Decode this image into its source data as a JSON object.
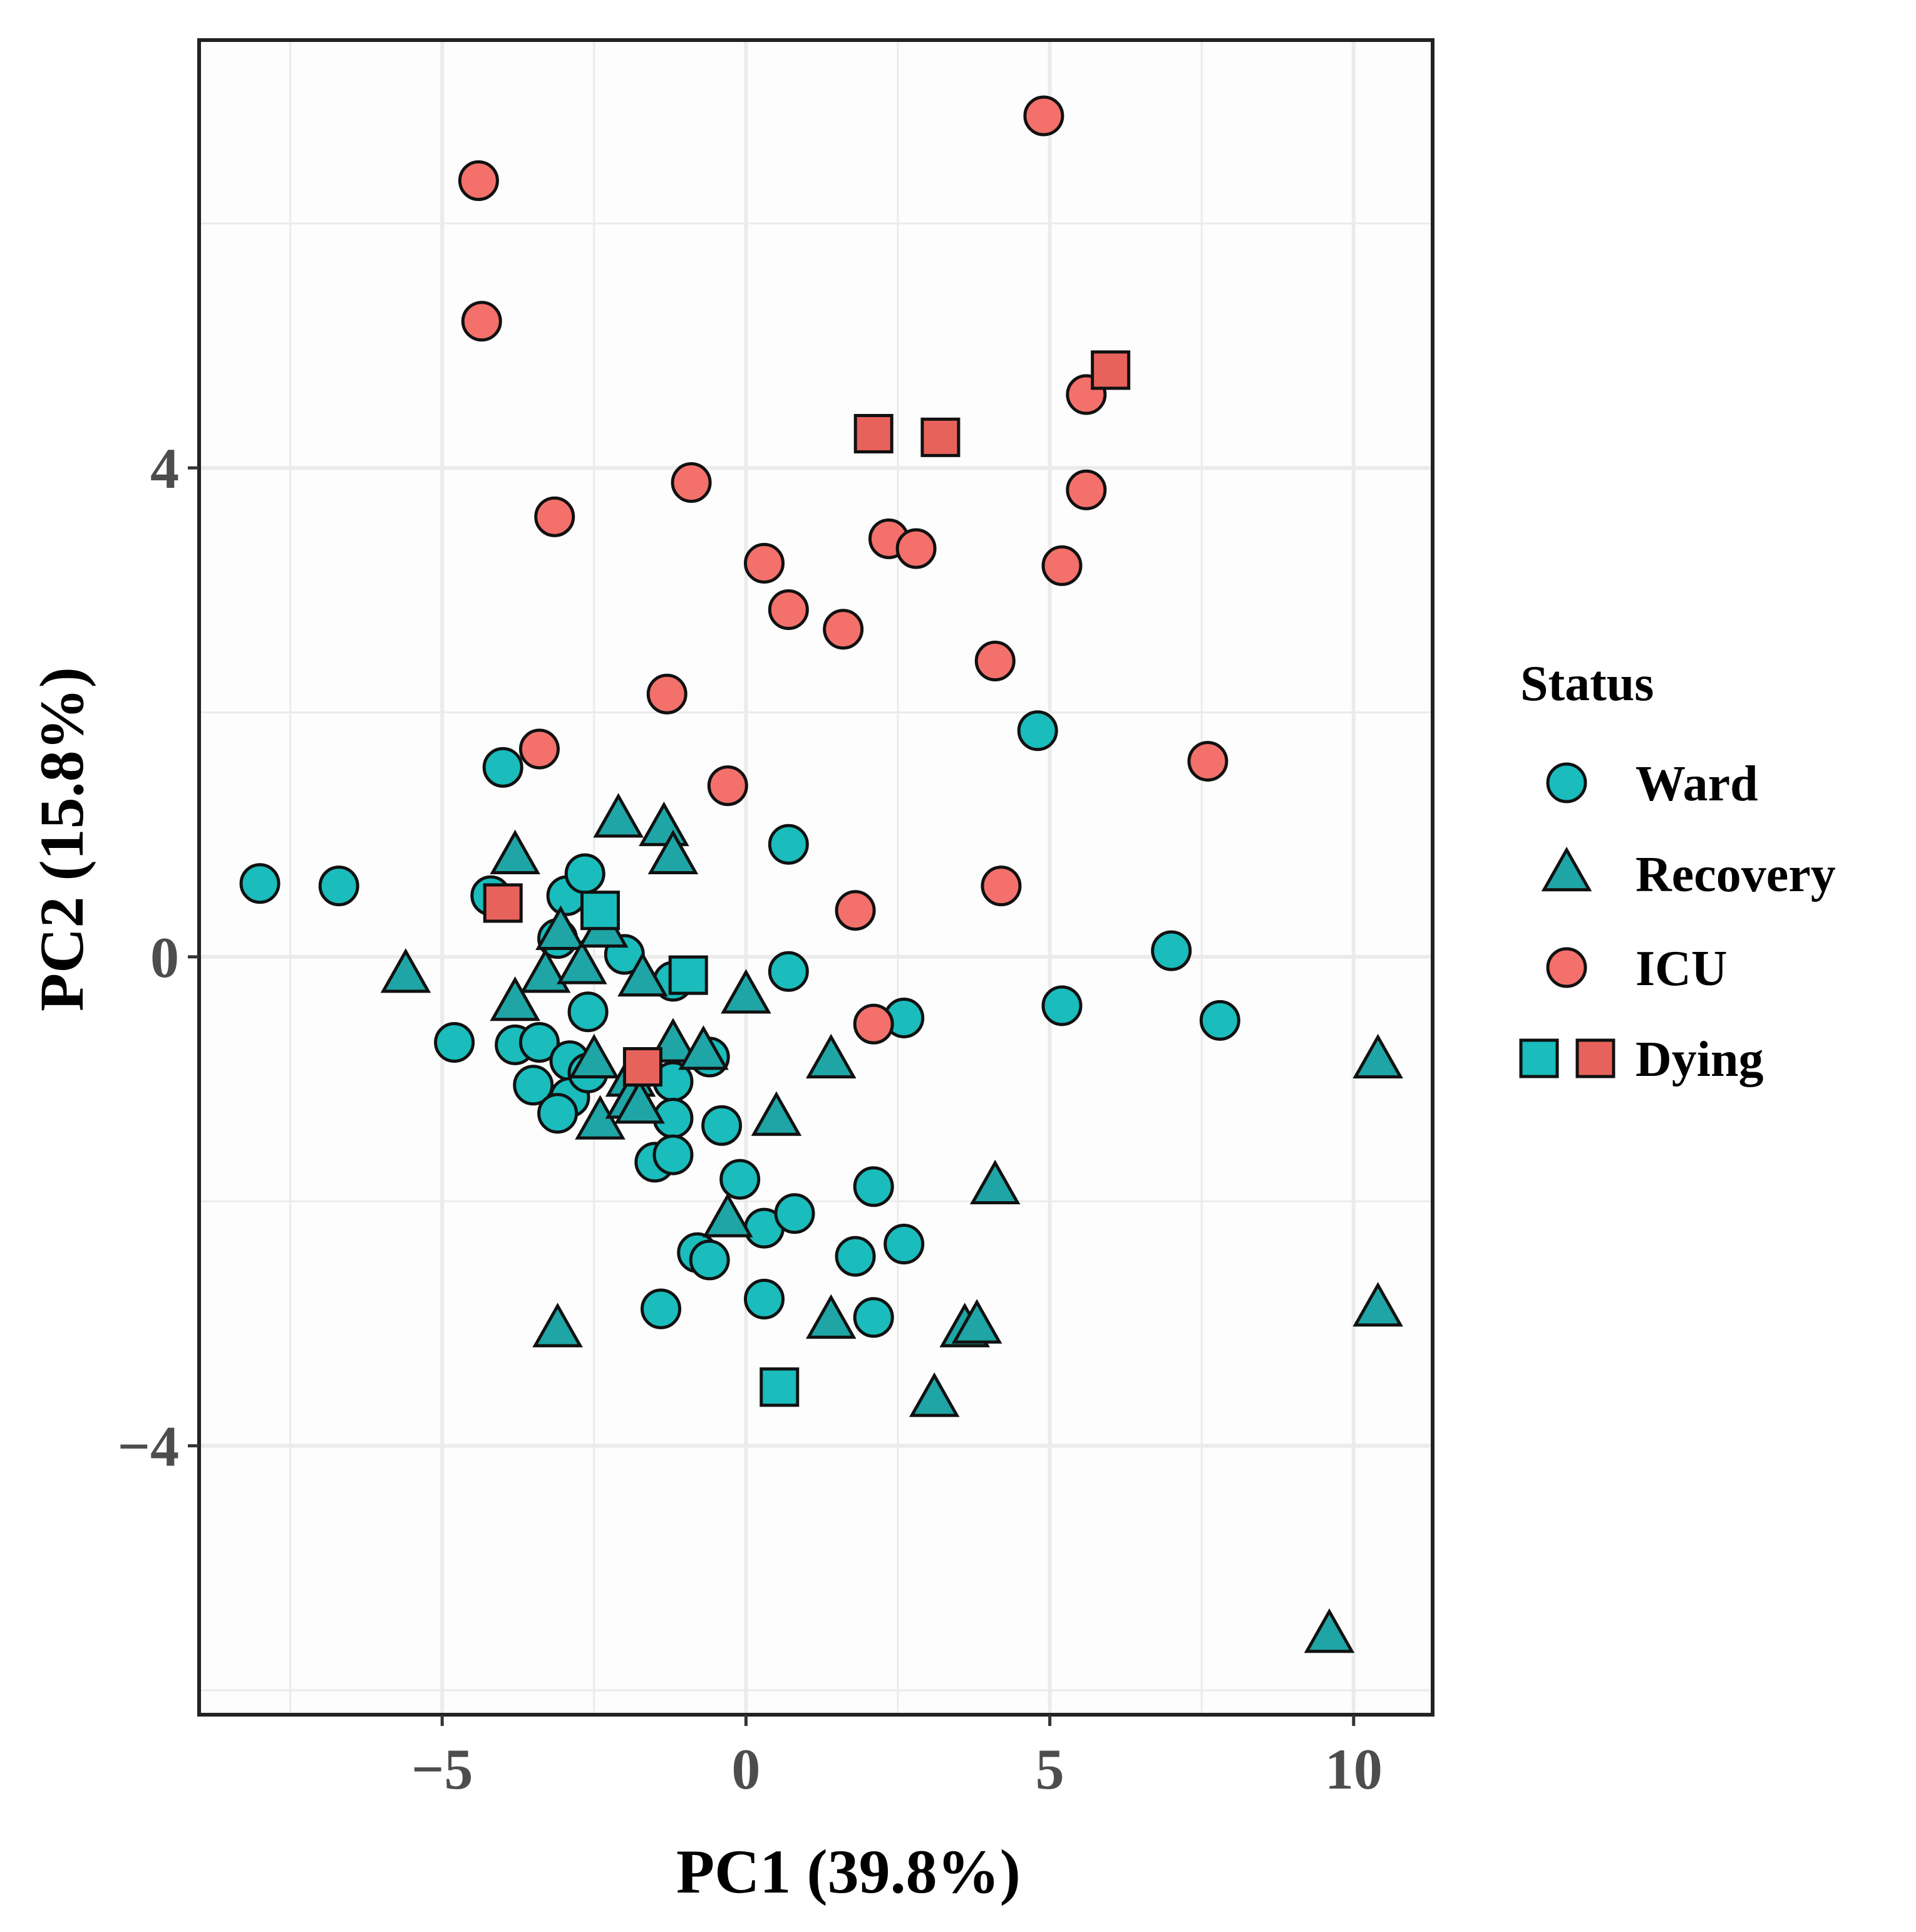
{
  "colors": {
    "ward": "#1ABCBC",
    "recovery": "#1FA5A5",
    "icu": "#F4706A",
    "dying_ward": "#1ABCBC",
    "dying_icu": "#E8625C",
    "panel_bg": "#FDFDFE",
    "grid": "#EBEBEB",
    "axis_text": "#4D4D4D"
  },
  "chart_data": {
    "type": "scatter",
    "xlabel": "PC1 (39.8%)",
    "ylabel": "PC2 (15.8%)",
    "xlim": [
      -9.0,
      11.3
    ],
    "ylim": [
      -6.2,
      7.5
    ],
    "x_ticks": [
      -5,
      0,
      5,
      10
    ],
    "x_tick_labels": [
      "−5",
      "0",
      "5",
      "10"
    ],
    "y_ticks": [
      -4,
      0,
      4
    ],
    "y_tick_labels": [
      "−4",
      "0",
      "4"
    ],
    "x_minor": [
      -7.5,
      -2.5,
      2.5,
      7.5
    ],
    "y_minor": [
      -6,
      -2,
      2,
      6
    ],
    "legend": {
      "title": "Status",
      "position": "right",
      "entries": [
        {
          "label": "Ward",
          "shape": "circle",
          "group": "ward"
        },
        {
          "label": "Recovery",
          "shape": "triangle",
          "group": "recovery"
        },
        {
          "label": "ICU",
          "shape": "circle",
          "group": "icu"
        },
        {
          "label": "Dying",
          "shape": "squares",
          "group": "dying"
        }
      ]
    },
    "series": [
      {
        "name": "Ward",
        "shape": "circle",
        "color_key": "ward",
        "points": [
          [
            -8.0,
            0.6
          ],
          [
            -6.7,
            0.58
          ],
          [
            -4.2,
            0.5
          ],
          [
            -4.0,
            1.55
          ],
          [
            -4.8,
            -0.7
          ],
          [
            -3.8,
            -0.72
          ],
          [
            -3.4,
            -0.7
          ],
          [
            -3.5,
            -1.05
          ],
          [
            -2.9,
            -0.85
          ],
          [
            -2.9,
            -1.15
          ],
          [
            -3.1,
            -1.28
          ],
          [
            -2.6,
            -0.95
          ],
          [
            -2.6,
            -0.45
          ],
          [
            -3.1,
            0.15
          ],
          [
            -2.95,
            0.5
          ],
          [
            -2.65,
            0.68
          ],
          [
            -2.0,
            0.02
          ],
          [
            -1.2,
            -0.2
          ],
          [
            -1.2,
            -1.02
          ],
          [
            -1.2,
            -1.32
          ],
          [
            -1.5,
            -1.68
          ],
          [
            -1.2,
            -1.62
          ],
          [
            -0.6,
            -0.82
          ],
          [
            -0.4,
            -1.38
          ],
          [
            -0.1,
            -1.82
          ],
          [
            -0.8,
            -2.42
          ],
          [
            -0.6,
            -2.48
          ],
          [
            0.3,
            -2.22
          ],
          [
            0.8,
            -2.1
          ],
          [
            0.7,
            -0.12
          ],
          [
            0.7,
            0.92
          ],
          [
            -1.4,
            -2.88
          ],
          [
            0.3,
            -2.8
          ],
          [
            1.8,
            -2.45
          ],
          [
            2.1,
            -1.88
          ],
          [
            2.6,
            -2.35
          ],
          [
            2.1,
            -2.95
          ],
          [
            2.6,
            -0.5
          ],
          [
            4.8,
            1.85
          ],
          [
            5.2,
            -0.4
          ],
          [
            7.0,
            0.05
          ],
          [
            7.8,
            -0.52
          ]
        ]
      },
      {
        "name": "Recovery",
        "shape": "triangle",
        "color_key": "recovery",
        "points": [
          [
            -5.6,
            -0.15
          ],
          [
            -3.8,
            0.82
          ],
          [
            -3.8,
            -0.38
          ],
          [
            -3.3,
            -0.15
          ],
          [
            -3.05,
            0.2
          ],
          [
            -2.7,
            -0.08
          ],
          [
            -2.35,
            0.22
          ],
          [
            -2.5,
            -0.85
          ],
          [
            -2.4,
            -1.35
          ],
          [
            -2.1,
            1.12
          ],
          [
            -1.9,
            -1.0
          ],
          [
            -1.9,
            -1.18
          ],
          [
            -1.75,
            -1.22
          ],
          [
            -1.7,
            -0.18
          ],
          [
            -1.35,
            1.05
          ],
          [
            -1.2,
            0.82
          ],
          [
            -1.2,
            -0.72
          ],
          [
            -0.7,
            -0.78
          ],
          [
            -0.3,
            -2.15
          ],
          [
            0.0,
            -0.32
          ],
          [
            0.5,
            -1.32
          ],
          [
            1.4,
            -2.98
          ],
          [
            1.4,
            -0.85
          ],
          [
            3.1,
            -3.62
          ],
          [
            3.6,
            -3.05
          ],
          [
            3.8,
            -3.02
          ],
          [
            4.1,
            -1.88
          ],
          [
            -3.1,
            -3.05
          ],
          [
            10.4,
            -0.85
          ],
          [
            10.4,
            -2.88
          ],
          [
            9.6,
            -5.55
          ]
        ]
      },
      {
        "name": "ICU",
        "shape": "circle",
        "color_key": "icu",
        "points": [
          [
            -4.4,
            6.35
          ],
          [
            -4.35,
            5.2
          ],
          [
            -3.4,
            1.7
          ],
          [
            -3.15,
            3.6
          ],
          [
            -1.3,
            2.15
          ],
          [
            -0.9,
            3.88
          ],
          [
            -0.3,
            1.4
          ],
          [
            0.3,
            3.22
          ],
          [
            0.7,
            2.84
          ],
          [
            1.6,
            2.68
          ],
          [
            1.8,
            0.38
          ],
          [
            2.1,
            -0.55
          ],
          [
            2.35,
            3.42
          ],
          [
            2.8,
            3.34
          ],
          [
            4.1,
            2.42
          ],
          [
            4.2,
            0.58
          ],
          [
            4.9,
            6.88
          ],
          [
            5.2,
            3.2
          ],
          [
            5.6,
            4.6
          ],
          [
            5.6,
            3.82
          ],
          [
            7.6,
            1.6
          ]
        ]
      },
      {
        "name": "Dying (Ward)",
        "shape": "square",
        "color_key": "dying_ward",
        "points": [
          [
            -2.4,
            0.38
          ],
          [
            -0.95,
            -0.15
          ],
          [
            0.55,
            -3.52
          ]
        ]
      },
      {
        "name": "Dying (ICU)",
        "shape": "square",
        "color_key": "dying_icu",
        "points": [
          [
            -4.0,
            0.44
          ],
          [
            -1.7,
            -0.9
          ],
          [
            2.1,
            4.28
          ],
          [
            3.2,
            4.25
          ],
          [
            6.0,
            4.8
          ]
        ]
      }
    ]
  }
}
